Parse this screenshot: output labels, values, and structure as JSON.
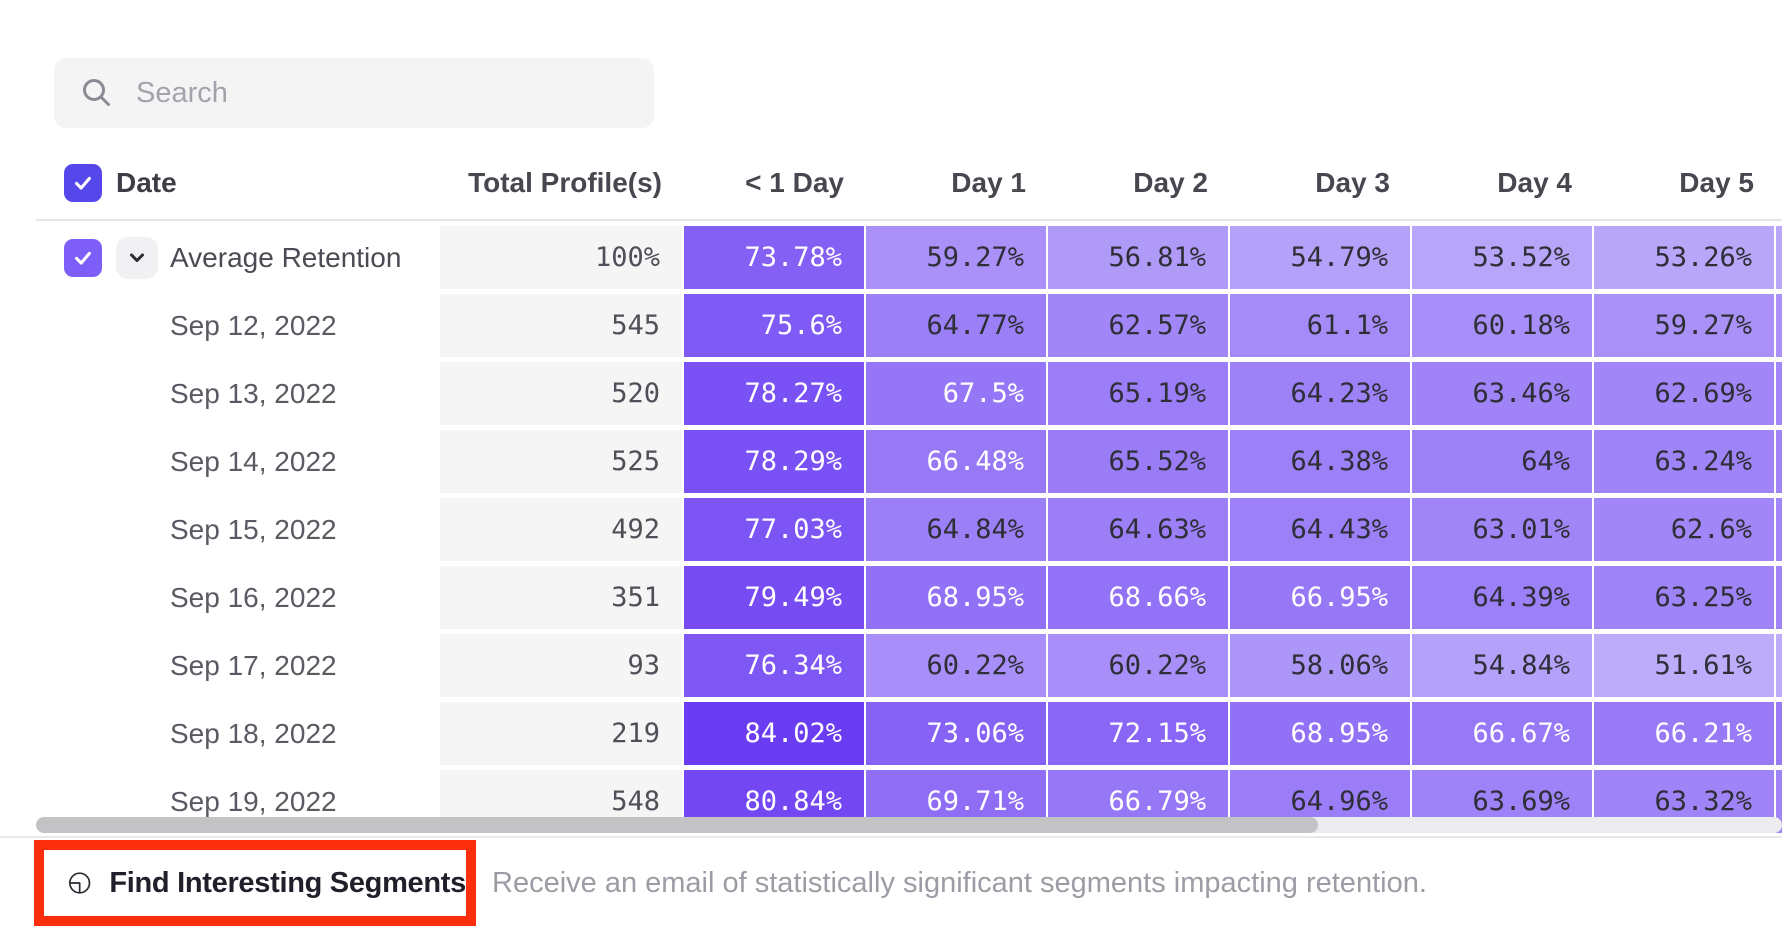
{
  "search": {
    "placeholder": "Search"
  },
  "table": {
    "columns": [
      "Date",
      "Total Profile(s)",
      "< 1 Day",
      "Day 1",
      "Day 2",
      "Day 3",
      "Day 4",
      "Day 5"
    ],
    "rows": [
      {
        "label": "Average Retention",
        "is_average": true,
        "total": "100%",
        "values": [
          73.78,
          59.27,
          56.81,
          54.79,
          53.52,
          53.26
        ]
      },
      {
        "label": "Sep 12, 2022",
        "is_average": false,
        "total": "545",
        "values": [
          75.6,
          64.77,
          62.57,
          61.1,
          60.18,
          59.27
        ]
      },
      {
        "label": "Sep 13, 2022",
        "is_average": false,
        "total": "520",
        "values": [
          78.27,
          67.5,
          65.19,
          64.23,
          63.46,
          62.69
        ]
      },
      {
        "label": "Sep 14, 2022",
        "is_average": false,
        "total": "525",
        "values": [
          78.29,
          66.48,
          65.52,
          64.38,
          64,
          63.24
        ]
      },
      {
        "label": "Sep 15, 2022",
        "is_average": false,
        "total": "492",
        "values": [
          77.03,
          64.84,
          64.63,
          64.43,
          63.01,
          62.6
        ]
      },
      {
        "label": "Sep 16, 2022",
        "is_average": false,
        "total": "351",
        "values": [
          79.49,
          68.95,
          68.66,
          66.95,
          64.39,
          63.25
        ]
      },
      {
        "label": "Sep 17, 2022",
        "is_average": false,
        "total": "93",
        "values": [
          76.34,
          60.22,
          60.22,
          58.06,
          54.84,
          51.61
        ]
      },
      {
        "label": "Sep 18, 2022",
        "is_average": false,
        "total": "219",
        "values": [
          84.02,
          73.06,
          72.15,
          68.95,
          66.67,
          66.21
        ]
      },
      {
        "label": "Sep 19, 2022",
        "is_average": false,
        "total": "548",
        "values": [
          80.84,
          69.71,
          66.79,
          64.96,
          63.69,
          63.32
        ]
      }
    ]
  },
  "footer": {
    "button_label": "Find Interesting Segments",
    "description": "Receive an email of statistically significant segments impacting retention."
  },
  "colors": {
    "header_checkbox": "#5547e9",
    "row_checkbox": "#7e5ef8",
    "heat_light": "#c0b1fa",
    "heat_dark": "#693af2",
    "heat_dark_text": "#2e2e36",
    "highlight_red": "#fb2e0e"
  }
}
